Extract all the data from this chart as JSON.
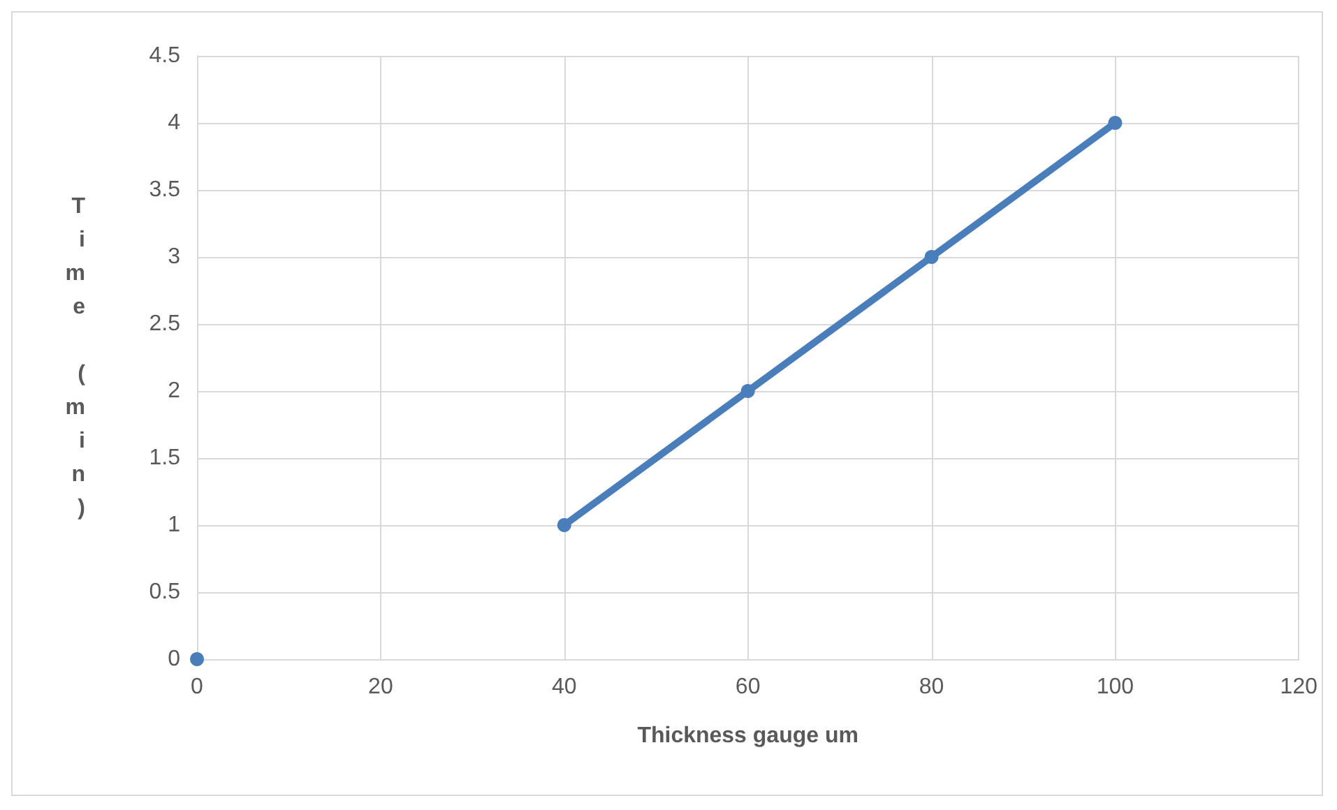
{
  "chart_data": {
    "type": "line",
    "xlabel": "Thickness gauge um",
    "ylabel": "Time (min)",
    "x": [
      0,
      20,
      40,
      60,
      80,
      100
    ],
    "series": [
      {
        "color": "#4a7ebb",
        "values": [
          0,
          null,
          1,
          2,
          3,
          4
        ]
      }
    ],
    "xlim": [
      0,
      120
    ],
    "xticks": [
      0,
      20,
      40,
      60,
      80,
      100,
      120
    ],
    "ylim": [
      0,
      4.5
    ],
    "yticks": [
      0,
      0.5,
      1,
      1.5,
      2,
      2.5,
      3,
      3.5,
      4,
      4.5
    ],
    "grid": true,
    "marker": "circle",
    "line_style": "solid"
  }
}
